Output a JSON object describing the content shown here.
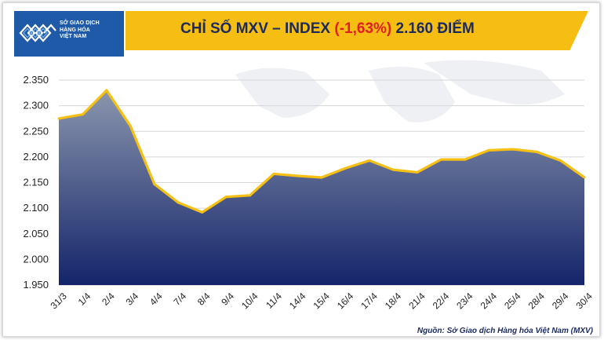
{
  "logo": {
    "line1": "SỞ GIAO DỊCH",
    "line2": "HÀNG HÓA",
    "line3": "VIỆT NAM"
  },
  "title": {
    "prefix": "CHỈ SỐ MXV – INDEX ",
    "change": "(-1,63%)",
    "suffix": " 2.160 ĐIỂM"
  },
  "source": "Nguồn: Sở Giao dịch Hàng hóa Việt Nam (MXV)",
  "colors": {
    "banner": "#f6bd12",
    "title": "#1b2a5e",
    "negative": "#e02020",
    "area_top": "#8a96ad",
    "area_bottom": "#14246a",
    "line": "#f5c013",
    "logo_bg": "#1e5aa8"
  },
  "chart_data": {
    "type": "area",
    "title": "CHỈ SỐ MXV – INDEX (-1,63%) 2.160 ĐIỂM",
    "categories": [
      "31/3",
      "1/4",
      "2/4",
      "3/4",
      "4/4",
      "7/4",
      "8/4",
      "9/4",
      "10/4",
      "11/4",
      "14/4",
      "15/4",
      "16/4",
      "17/4",
      "18/4",
      "21/4",
      "22/4",
      "23/4",
      "24/4",
      "25/4",
      "28/4",
      "29/4",
      "30/4"
    ],
    "values": [
      2275,
      2283,
      2330,
      2260,
      2147,
      2111,
      2092,
      2122,
      2125,
      2167,
      2163,
      2160,
      2178,
      2193,
      2175,
      2170,
      2195,
      2195,
      2213,
      2215,
      2210,
      2193,
      2160
    ],
    "ylim": [
      1950,
      2350
    ],
    "yticks": [
      1950,
      2000,
      2050,
      2100,
      2150,
      2200,
      2250,
      2300,
      2350
    ],
    "ytick_labels": [
      "1.950",
      "2.000",
      "2.050",
      "2.100",
      "2.150",
      "2.200",
      "2.250",
      "2.300",
      "2.350"
    ],
    "grid": true,
    "xlabel": "",
    "ylabel": ""
  }
}
